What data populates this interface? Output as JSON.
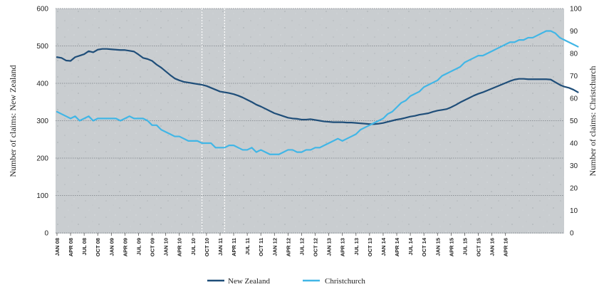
{
  "chart_data": {
    "type": "line",
    "ylabel_left": "Number of claims: New Zealand",
    "ylabel_right": "Number of claims: Christchurch",
    "ylim_left": [
      0,
      600
    ],
    "ylim_right": [
      0,
      100
    ],
    "yticks_left": [
      "0",
      "100",
      "200",
      "300",
      "400",
      "500",
      "600"
    ],
    "yticks_right": [
      "0",
      "10",
      "20",
      "30",
      "40",
      "50",
      "60",
      "70",
      "80",
      "90",
      "100"
    ],
    "x_tick_labels": [
      "JAN 08",
      "APR 08",
      "JUL 08",
      "OCT 08",
      "JAN 09",
      "APR 09",
      "JUL 09",
      "OCT 09",
      "JAN 10",
      "APR 10",
      "JUL 10",
      "OCT 10",
      "JAN 11",
      "APR 11",
      "JUL 11",
      "OCT 11",
      "JAN 12",
      "APR 12",
      "JUL 12",
      "OCT 12",
      "JAN 13",
      "APR 13",
      "JUL 13",
      "OCT 13",
      "JAN 14",
      "APR 14",
      "JUL 14",
      "OCT 14",
      "JAN 15",
      "APR 15",
      "JUL 15",
      "OCT 15",
      "JAN 16",
      "APR 16"
    ],
    "grid": true,
    "legend_position": "bottom-center",
    "vertical_markers": [
      "SEP 10",
      "FEB 11"
    ],
    "series": [
      {
        "name": "New Zealand",
        "axis": "left",
        "color": "#1f4e79",
        "values": [
          470,
          468,
          461,
          460,
          470,
          474,
          478,
          486,
          483,
          490,
          492,
          492,
          491,
          490,
          489,
          489,
          487,
          485,
          477,
          468,
          465,
          460,
          450,
          442,
          432,
          422,
          413,
          408,
          404,
          402,
          400,
          398,
          396,
          393,
          388,
          383,
          378,
          376,
          374,
          371,
          367,
          362,
          356,
          350,
          343,
          338,
          332,
          326,
          320,
          316,
          312,
          308,
          306,
          305,
          303,
          303,
          304,
          302,
          300,
          298,
          297,
          296,
          296,
          296,
          295,
          295,
          294,
          293,
          292,
          291,
          291,
          292,
          294,
          297,
          300,
          303,
          305,
          308,
          311,
          313,
          316,
          318,
          320,
          324,
          327,
          329,
          331,
          336,
          342,
          349,
          355,
          361,
          367,
          372,
          376,
          381,
          386,
          391,
          396,
          401,
          406,
          410,
          412,
          412,
          411,
          411,
          411,
          411,
          411,
          410,
          403,
          396,
          391,
          388,
          383,
          376
        ]
      },
      {
        "name": "Christchurch",
        "axis": "right",
        "color": "#41b6e6",
        "values": [
          54,
          53,
          52,
          51,
          52,
          50,
          51,
          52,
          50,
          51,
          51,
          51,
          51,
          51,
          50,
          51,
          52,
          51,
          51,
          51,
          50,
          48,
          48,
          46,
          45,
          44,
          43,
          43,
          42,
          41,
          41,
          41,
          40,
          40,
          40,
          38,
          38,
          38,
          39,
          39,
          38,
          37,
          37,
          38,
          36,
          37,
          36,
          35,
          35,
          35,
          36,
          37,
          37,
          36,
          36,
          37,
          37,
          38,
          38,
          39,
          40,
          41,
          42,
          41,
          42,
          43,
          44,
          46,
          47,
          48,
          49,
          50,
          51,
          53,
          54,
          56,
          58,
          59,
          61,
          62,
          63,
          65,
          66,
          67,
          68,
          70,
          71,
          72,
          73,
          74,
          76,
          77,
          78,
          79,
          79,
          80,
          81,
          82,
          83,
          84,
          85,
          85,
          86,
          86,
          87,
          87,
          88,
          89,
          90,
          90,
          89,
          87,
          86,
          85,
          84,
          83
        ]
      }
    ]
  }
}
